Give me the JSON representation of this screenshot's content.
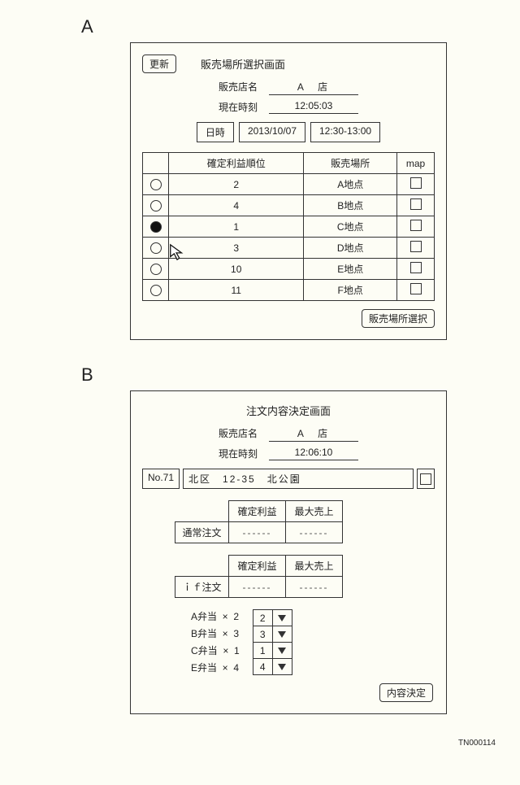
{
  "footer_id": "TN000114",
  "panelA": {
    "label": "A",
    "update_btn": "更新",
    "title": "販売場所選択画面",
    "store_label": "販売店名",
    "store_value": "A　店",
    "time_label": "現在時刻",
    "time_value": "12:05:03",
    "dt": {
      "label": "日時",
      "date": "2013/10/07",
      "range": "12:30-13:00"
    },
    "table": {
      "headers": [
        "",
        "確定利益順位",
        "販売場所",
        "map"
      ],
      "rows": [
        {
          "selected": false,
          "rank": "2",
          "loc": "A地点"
        },
        {
          "selected": false,
          "rank": "4",
          "loc": "B地点"
        },
        {
          "selected": true,
          "rank": "1",
          "loc": "C地点"
        },
        {
          "selected": false,
          "rank": "3",
          "loc": "D地点"
        },
        {
          "selected": false,
          "rank": "10",
          "loc": "E地点"
        },
        {
          "selected": false,
          "rank": "11",
          "loc": "F地点"
        }
      ]
    },
    "select_btn": "販売場所選択"
  },
  "panelB": {
    "label": "B",
    "title": "注文内容決定画面",
    "store_label": "販売店名",
    "store_value": "A　店",
    "time_label": "現在時刻",
    "time_value": "12:06:10",
    "addr": {
      "no": "No.71",
      "text": "北区　12-35　北公園"
    },
    "order_tables": [
      {
        "label": "通常注文",
        "cols": [
          "確定利益",
          "最大売上"
        ],
        "vals": [
          "------",
          "------"
        ]
      },
      {
        "label": "ｉｆ注文",
        "cols": [
          "確定利益",
          "最大売上"
        ],
        "vals": [
          "------",
          "------"
        ]
      }
    ],
    "bento": [
      {
        "name": "A弁当",
        "qty": "2"
      },
      {
        "name": "B弁当",
        "qty": "3"
      },
      {
        "name": "C弁当",
        "qty": "1"
      },
      {
        "name": "E弁当",
        "qty": "4"
      }
    ],
    "decide_btn": "内容決定"
  }
}
